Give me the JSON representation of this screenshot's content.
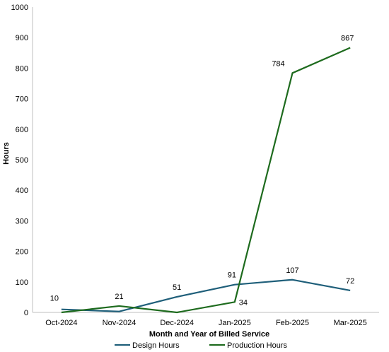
{
  "chart_data": {
    "type": "line",
    "title": "",
    "xlabel": "Month and Year of  Billed Service",
    "ylabel": "Hours",
    "categories": [
      "Oct-2024",
      "Nov-2024",
      "Dec-2024",
      "Jan-2025",
      "Feb-2025",
      "Mar-2025"
    ],
    "ylim": [
      0,
      1000
    ],
    "yticks": [
      0,
      100,
      200,
      300,
      400,
      500,
      600,
      700,
      800,
      900,
      1000
    ],
    "grid": false,
    "legend": "bottom",
    "series": [
      {
        "name": "Design Hours",
        "color": "#1f5f7a",
        "values": [
          10,
          3,
          51,
          91,
          107,
          72
        ],
        "labels": [
          "10",
          "",
          "51",
          "91",
          "107",
          "72"
        ]
      },
      {
        "name": "Production Hours",
        "color": "#1e6b1e",
        "values": [
          0,
          21,
          0,
          34,
          784,
          867
        ],
        "labels": [
          "",
          "21",
          "",
          "34",
          "784",
          "867"
        ]
      }
    ]
  }
}
